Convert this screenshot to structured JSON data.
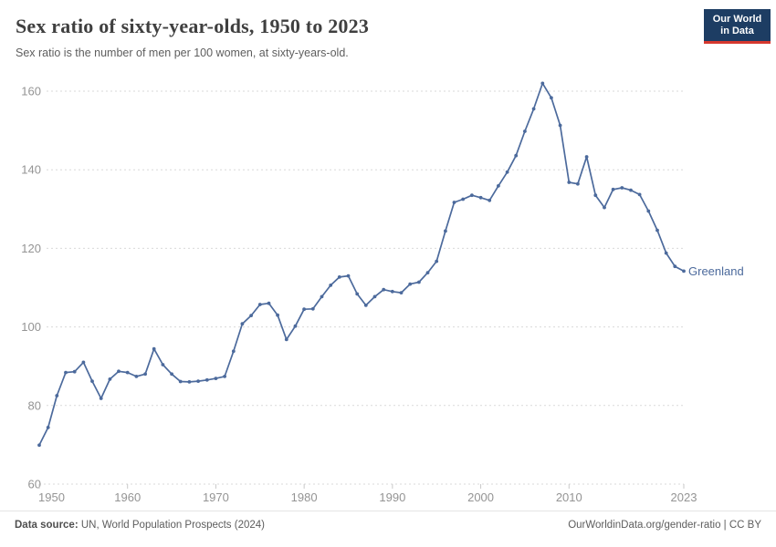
{
  "logo": {
    "line1": "Our World",
    "line2": "in Data"
  },
  "footer": {
    "source_label": "Data source:",
    "source": " UN, World Population Prospects (2024)",
    "link": "OurWorldinData.org/gender-ratio",
    "license": " | CC BY"
  },
  "chart_data": {
    "type": "line",
    "title": "Sex ratio of sixty-year-olds, 1950 to 2023",
    "subtitle": "Sex ratio is the number of men per 100 women, at sixty-years-old.",
    "entity": "Greenland",
    "xlim": [
      1950,
      2023
    ],
    "ylim": [
      60,
      160
    ],
    "yticks": [
      60,
      80,
      100,
      120,
      140,
      160
    ],
    "xticks": [
      1950,
      1960,
      1970,
      1980,
      1990,
      2000,
      2010,
      2023
    ],
    "grid": "horizontal-dashed",
    "line_color": "#4c6a9c",
    "tick_color": "#949494",
    "grid_color": "#d9d9d9",
    "years": [
      1950,
      1951,
      1952,
      1953,
      1954,
      1955,
      1956,
      1957,
      1958,
      1959,
      1960,
      1961,
      1962,
      1963,
      1964,
      1965,
      1966,
      1967,
      1968,
      1969,
      1970,
      1971,
      1972,
      1973,
      1974,
      1975,
      1976,
      1977,
      1978,
      1979,
      1980,
      1981,
      1982,
      1983,
      1984,
      1985,
      1986,
      1987,
      1988,
      1989,
      1990,
      1991,
      1992,
      1993,
      1994,
      1995,
      1996,
      1997,
      1998,
      1999,
      2000,
      2001,
      2002,
      2003,
      2004,
      2005,
      2006,
      2007,
      2008,
      2009,
      2010,
      2011,
      2012,
      2013,
      2014,
      2015,
      2016,
      2017,
      2018,
      2019,
      2020,
      2021,
      2022,
      2023
    ],
    "series": [
      {
        "name": "Greenland",
        "color": "#4c6a9c",
        "values": [
          69.9,
          74.4,
          82.5,
          88.4,
          88.6,
          91.0,
          86.2,
          81.8,
          86.7,
          88.7,
          88.4,
          87.4,
          88.0,
          94.4,
          90.4,
          88.0,
          86.1,
          86.0,
          86.2,
          86.5,
          86.9,
          87.4,
          93.8,
          100.8,
          102.9,
          105.7,
          106.0,
          103.0,
          96.8,
          100.2,
          104.5,
          104.6,
          107.7,
          110.6,
          112.7,
          113.0,
          108.4,
          105.5,
          107.7,
          109.5,
          109.0,
          108.7,
          110.9,
          111.4,
          113.8,
          116.7,
          124.4,
          131.7,
          132.5,
          133.5,
          132.9,
          132.2,
          135.9,
          139.4,
          143.6,
          149.8,
          155.5,
          162.0,
          158.3,
          151.3,
          136.8,
          136.4,
          143.3,
          133.5,
          130.4,
          135.0,
          135.4,
          134.8,
          133.7,
          129.5,
          124.6,
          118.8,
          115.4,
          114.2
        ]
      }
    ]
  }
}
